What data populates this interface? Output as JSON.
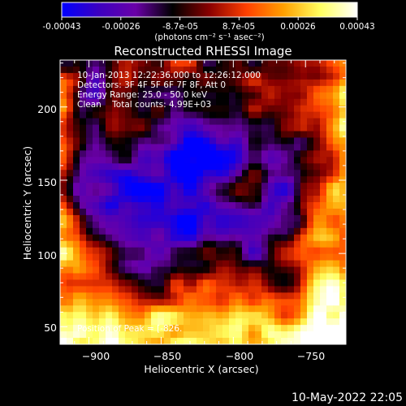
{
  "colorbar": {
    "colors": [
      "#0000ff",
      "#3c00c0",
      "#6a00a8",
      "#000000",
      "#8a0000",
      "#ff4000",
      "#ffa000",
      "#ffff60",
      "#ffffff"
    ],
    "ticks": [
      "-0.00043",
      "-0.00026",
      "-8.7e-05",
      "8.7e-05",
      "0.00026",
      "0.00043"
    ],
    "unit_label": "(photons cm⁻² s⁻¹ asec⁻²)"
  },
  "info_lines": [
    "10-Jan-2013 12:22:36.000 to 12:26:12.000",
    "Detectors: 3F 4F 5F 6F 7F 8F, Att 0",
    "Energy Range: 25.0 - 50.0 keV",
    "Clean    Total counts: 4.99E+03"
  ],
  "peak_label": "Position of Peak = [-826.",
  "footer_date": "10-May-2022 22:05",
  "chart_data": {
    "type": "heatmap",
    "title": "Reconstructed RHESSI Image",
    "xlabel": "Heliocentric X (arcsec)",
    "ylabel": "Heliocentric Y (arcsec)",
    "xlim": [
      -920,
      -722
    ],
    "ylim": [
      38,
      232
    ],
    "xticks": [
      -900,
      -850,
      -800,
      -750
    ],
    "yticks": [
      50,
      100,
      150,
      200
    ],
    "x_tick_labels": [
      "−900",
      "−850",
      "−800",
      "−750"
    ],
    "y_tick_labels": [
      "50",
      "100",
      "150",
      "200"
    ],
    "value_range": [
      -0.00043,
      0.00043
    ],
    "grid": false,
    "colormap": "blue-purple-black-red-yellow-white"
  }
}
